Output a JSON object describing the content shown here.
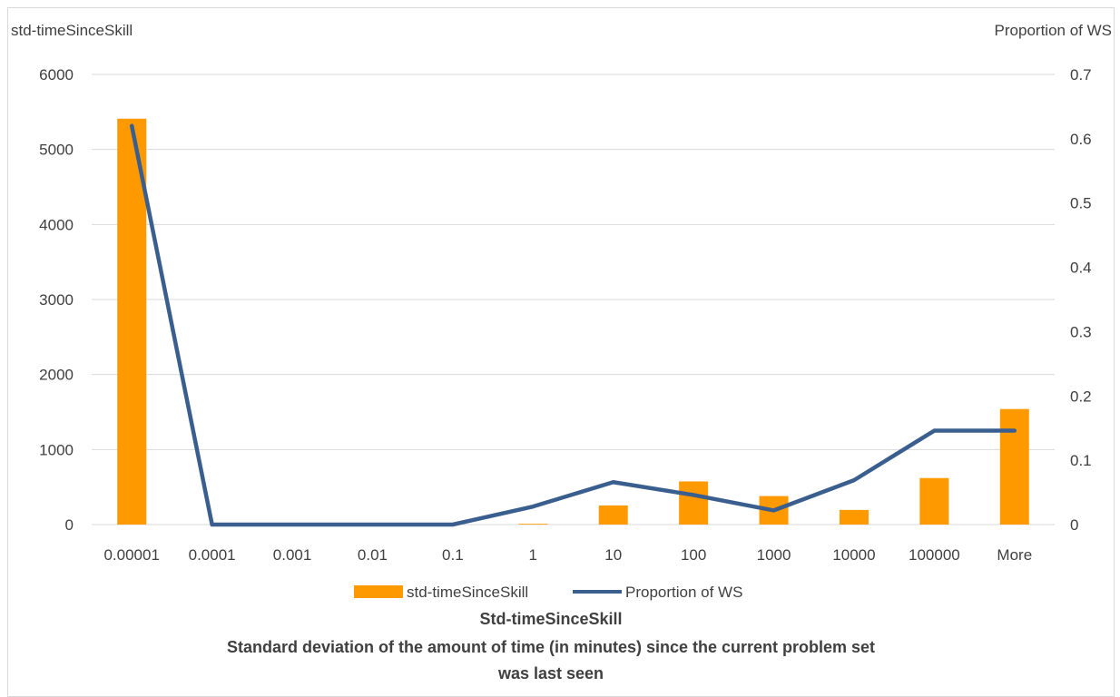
{
  "chart_data": {
    "type": "bar+line",
    "title": "",
    "categories": [
      "0.00001",
      "0.0001",
      "0.001",
      "0.01",
      "0.1",
      "1",
      "10",
      "100",
      "1000",
      "10000",
      "100000",
      "More"
    ],
    "series": [
      {
        "name": "std-timeSinceSkill",
        "type": "bar",
        "axis": "left",
        "color": "#FF9900",
        "values": [
          5410,
          0,
          0,
          0,
          0,
          10,
          255,
          575,
          380,
          195,
          620,
          1540
        ]
      },
      {
        "name": "Proportion of WS",
        "type": "line",
        "axis": "right",
        "color": "#3A5F8F",
        "values": [
          0.62,
          0.0,
          0.0,
          0.0,
          0.0,
          0.028,
          0.066,
          0.046,
          0.022,
          0.069,
          0.146,
          0.146
        ]
      }
    ],
    "y_left": {
      "label": "std-timeSinceSkill",
      "ylim": [
        0,
        6000
      ],
      "ticks": [
        "0",
        "1000",
        "2000",
        "3000",
        "4000",
        "5000",
        "6000"
      ]
    },
    "y_right": {
      "label": "Proportion of WS",
      "ylim": [
        0,
        0.7
      ],
      "ticks": [
        "0",
        "0.1",
        "0.2",
        "0.3",
        "0.4",
        "0.5",
        "0.6",
        "0.7"
      ]
    },
    "xlabel_lines": [
      "Std-timeSinceSkill",
      "Standard deviation of the amount of time (in minutes) since the current problem set",
      "was last seen"
    ],
    "legend_position": "bottom",
    "grid": "horizontal"
  }
}
